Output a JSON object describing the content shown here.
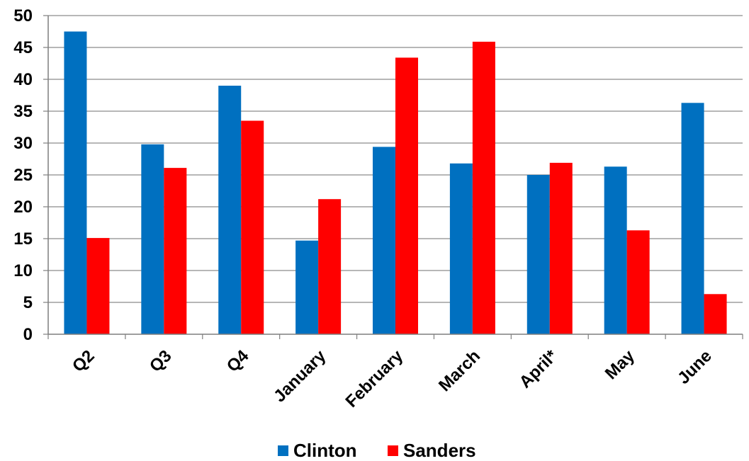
{
  "chart_data": {
    "type": "bar",
    "title": "",
    "xlabel": "",
    "ylabel": "",
    "categories": [
      "Q2",
      "Q3",
      "Q4",
      "January",
      "February",
      "March",
      "April*",
      "May",
      "June"
    ],
    "series": [
      {
        "name": "Clinton",
        "color": "#0070C0",
        "values": [
          47.5,
          29.8,
          39,
          14.7,
          29.4,
          26.8,
          25,
          26.3,
          36.3
        ]
      },
      {
        "name": "Sanders",
        "color": "#FF0000",
        "values": [
          15.1,
          26.1,
          33.5,
          21.2,
          43.4,
          45.9,
          26.9,
          16.3,
          6.3
        ]
      }
    ],
    "ylim": [
      0,
      50
    ],
    "yticks": [
      "0",
      "5",
      "10",
      "15",
      "20",
      "25",
      "30",
      "35",
      "40",
      "45",
      "50"
    ],
    "grid": true,
    "legend_position": "bottom"
  }
}
